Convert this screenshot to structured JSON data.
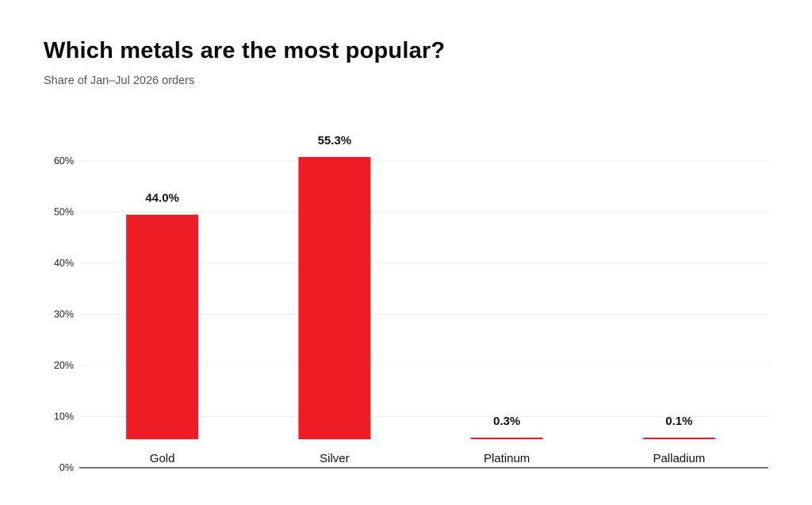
{
  "chart_data": {
    "type": "bar",
    "title": "Which metals are the most popular?",
    "subtitle": "Share of Jan–Jul 2026 orders",
    "categories": [
      "Gold",
      "Silver",
      "Platinum",
      "Palladium"
    ],
    "values": [
      44.0,
      55.3,
      0.3,
      0.1
    ],
    "value_labels": [
      "44.0%",
      "55.3%",
      "0.3%",
      "0.1%"
    ],
    "y_ticks": [
      {
        "value": 0,
        "label": "0%"
      },
      {
        "value": 10,
        "label": "10%"
      },
      {
        "value": 20,
        "label": "20%"
      },
      {
        "value": 30,
        "label": "30%"
      },
      {
        "value": 40,
        "label": "40%"
      },
      {
        "value": 50,
        "label": "50%"
      },
      {
        "value": 60,
        "label": "60%"
      }
    ],
    "ylim": [
      0,
      60
    ],
    "xlabel": "",
    "ylabel": "",
    "grid": true,
    "bar_color": "#ee1c25",
    "grid_color": "#eeeeee",
    "axis_color": "#222222"
  }
}
